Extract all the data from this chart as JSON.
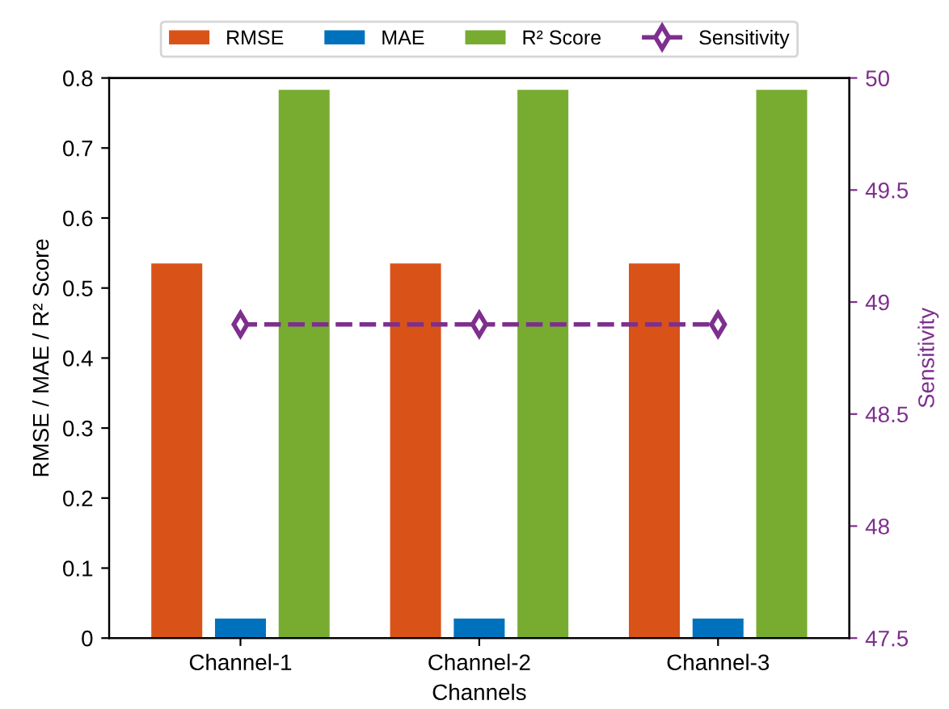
{
  "chart_data": {
    "type": "bar",
    "xlabel": "Channels",
    "ylabel": "RMSE / MAE / R² Score",
    "y2label": "Sensitivity",
    "categories": [
      "Channel-1",
      "Channel-2",
      "Channel-3"
    ],
    "series": [
      {
        "name": "RMSE",
        "color": "#d95319",
        "values": [
          0.535,
          0.535,
          0.535
        ]
      },
      {
        "name": "MAE",
        "color": "#0072bd",
        "values": [
          0.028,
          0.028,
          0.028
        ]
      },
      {
        "name": "R² Score",
        "color": "#77ac30",
        "values": [
          0.783,
          0.783,
          0.783
        ]
      },
      {
        "name": "Sensitivity",
        "type": "line",
        "axis": "y2",
        "color": "#7e2f8e",
        "values": [
          48.9,
          48.9,
          48.9
        ],
        "marker": "diamond",
        "line_style": "dashed"
      }
    ],
    "ylim": [
      0,
      0.8
    ],
    "yticks": [
      0,
      0.1,
      0.2,
      0.3,
      0.4,
      0.5,
      0.6,
      0.7,
      0.8
    ],
    "y2lim": [
      47.5,
      50
    ],
    "y2ticks": [
      47.5,
      48,
      48.5,
      49,
      49.5,
      50
    ],
    "legend": "top",
    "grid": false
  }
}
